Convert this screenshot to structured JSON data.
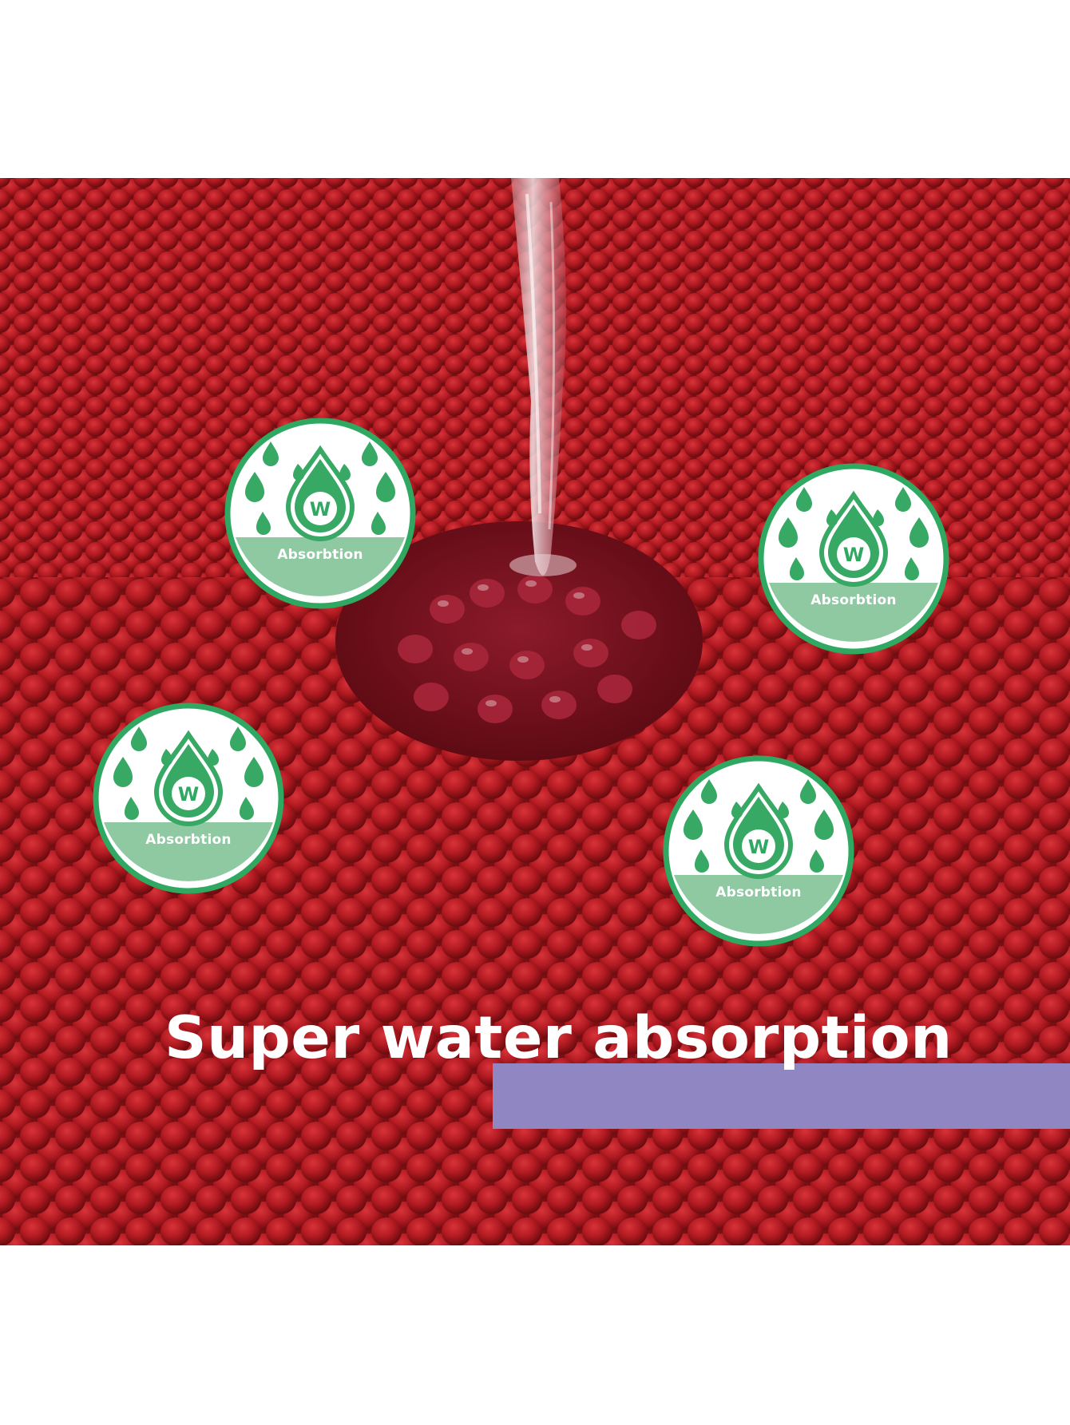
{
  "photo": {
    "subject": "red chenille fabric with water pouring onto it",
    "colors": {
      "fabric_base": "#a3141b",
      "fabric_light": "#c9252b",
      "fabric_dark": "#6f0c10",
      "wet_area": "#7a1220",
      "water": "#e8d8dc"
    }
  },
  "badges": [
    {
      "label": "Absorbtion",
      "glyph": "W",
      "icon": "water-drop-icon"
    },
    {
      "label": "Absorbtion",
      "glyph": "W",
      "icon": "water-drop-icon"
    },
    {
      "label": "Absorbtion",
      "glyph": "W",
      "icon": "water-drop-icon"
    },
    {
      "label": "Absorbtion",
      "glyph": "W",
      "icon": "water-drop-icon"
    }
  ],
  "badge_colors": {
    "ring": "#2fa862",
    "drop": "#38a865",
    "label_band": "#8ec9a2",
    "face": "#ffffff"
  },
  "headline": {
    "text": "Super water absorption",
    "color": "#ffffff",
    "band_color": "#8f86c2"
  }
}
